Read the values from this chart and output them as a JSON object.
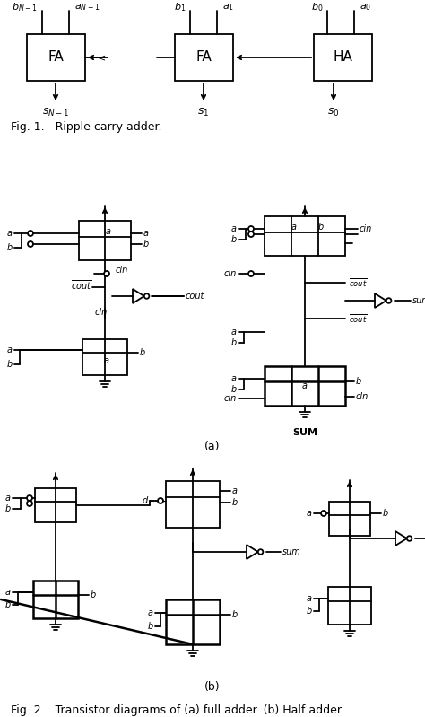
{
  "fig_width": 4.74,
  "fig_height": 7.99,
  "fig1_caption": "Fig. 1.   Ripple carry adder.",
  "fig2_caption": "Fig. 2.   Transistor diagrams of (a) full adder. (b) Half adder.",
  "label_a": "(a)",
  "label_b": "(b)",
  "lc": "#000000",
  "bg": "#ffffff"
}
